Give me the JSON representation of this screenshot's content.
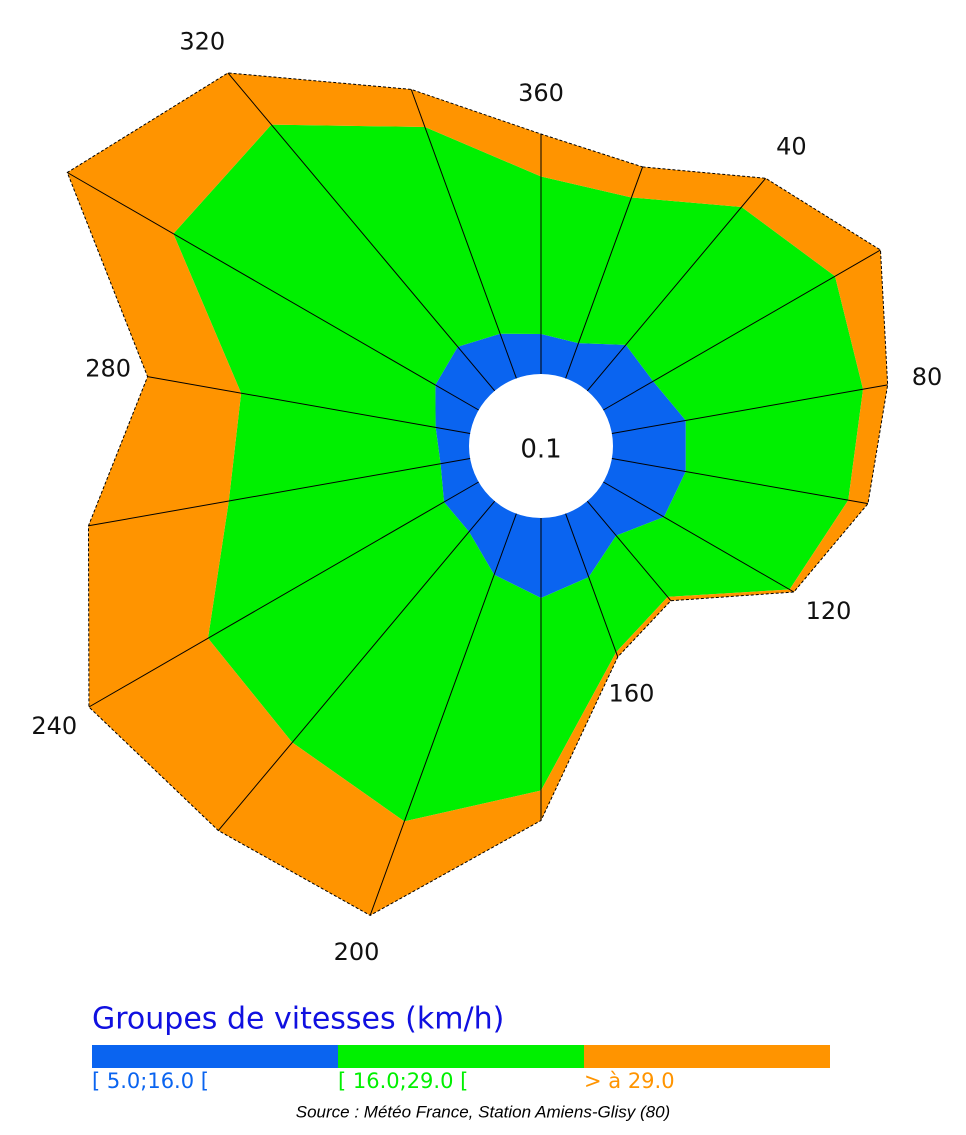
{
  "chart_data": {
    "type": "windrose",
    "categories": [
      null,
      40,
      null,
      80,
      null,
      120,
      null,
      160,
      null,
      200,
      null,
      240,
      null,
      280,
      null,
      320,
      null,
      360
    ],
    "calm": 0.1,
    "rlim": [
      0,
      20
    ],
    "legend_title": "Groupes de vitesses (km/h)",
    "source": "Source : Météo France, Station Amiens-Glisy (80)",
    "series": [
      {
        "name": "[ 5.0;16.0 [",
        "color": "#0a64f0",
        "values": [
          1.5,
          2.4,
          2.3,
          3.0,
          3.0,
          2.8,
          1.8,
          2.7,
          3.2,
          2.6,
          1.6,
          1.6,
          1.2,
          1.4,
          2.0,
          2.3,
          1.9,
          1.6
        ]
      },
      {
        "name": "[ 16.0;29.0 [",
        "color": "#00f000",
        "values": [
          6.2,
          7.2,
          8.4,
          7.2,
          6.6,
          5.8,
          3.2,
          3.2,
          7.7,
          10.5,
          11.0,
          10.9,
          8.6,
          7.9,
          12.1,
          11.6,
          8.8,
          6.3
        ]
      },
      {
        "name": "> à 29.0",
        "color": "#ff9400",
        "values": [
          1.3,
          1.5,
          2.1,
          1.0,
          0.8,
          0.2,
          0.2,
          0.2,
          1.2,
          4.0,
          4.6,
          5.5,
          5.7,
          3.8,
          4.9,
          2.7,
          1.6,
          1.7
        ]
      }
    ]
  }
}
